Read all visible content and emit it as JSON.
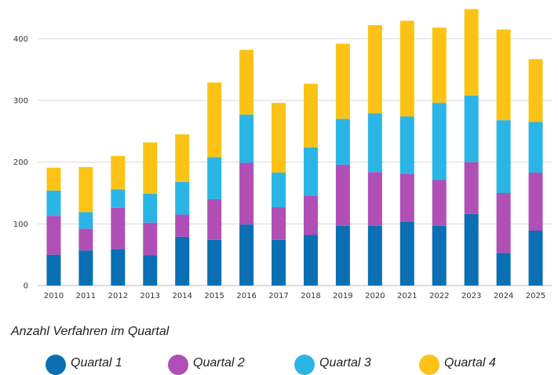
{
  "chart_data": {
    "type": "bar",
    "stacked": true,
    "categories": [
      "2010",
      "2011",
      "2012",
      "2013",
      "2014",
      "2015",
      "2016",
      "2017",
      "2018",
      "2019",
      "2020",
      "2021",
      "2022",
      "2023",
      "2024",
      "2025"
    ],
    "series": [
      {
        "name": "Quartal 1",
        "color": "#0a6fb3",
        "values": [
          50,
          57,
          59,
          49,
          79,
          74,
          99,
          74,
          82,
          97,
          97,
          103,
          97,
          116,
          53,
          89
        ]
      },
      {
        "name": "Quartal 2",
        "color": "#b04fb6",
        "values": [
          63,
          35,
          67,
          53,
          36,
          66,
          100,
          53,
          64,
          99,
          87,
          78,
          74,
          84,
          97,
          94
        ]
      },
      {
        "name": "Quartal 3",
        "color": "#2bb5e6",
        "values": [
          41,
          27,
          30,
          47,
          53,
          68,
          78,
          56,
          78,
          74,
          95,
          93,
          125,
          108,
          118,
          82
        ]
      },
      {
        "name": "Quartal 4",
        "color": "#fcc316",
        "values": [
          37,
          73,
          54,
          83,
          77,
          121,
          105,
          113,
          103,
          122,
          143,
          155,
          122,
          140,
          147,
          102
        ]
      }
    ],
    "ylim": [
      0,
      450
    ],
    "yticks": [
      0,
      100,
      200,
      300,
      400
    ],
    "grid": true,
    "legend": "bottom",
    "xlabel": "",
    "ylabel": ""
  },
  "caption": "Anzahl Verfahren im Quartal"
}
